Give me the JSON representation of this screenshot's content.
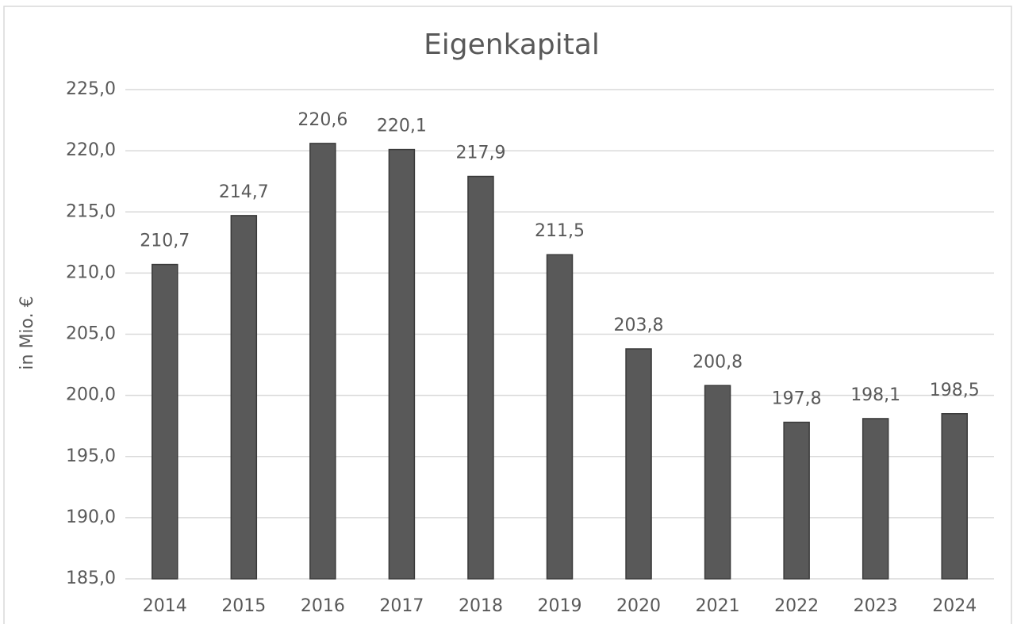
{
  "chart_data": {
    "type": "bar",
    "title": "Eigenkapital",
    "y_label": "in Mio. €",
    "categories": [
      "2014",
      "2015",
      "2016",
      "2017",
      "2018",
      "2019",
      "2020",
      "2021",
      "2022",
      "2023",
      "2024"
    ],
    "values": [
      210.7,
      214.7,
      220.6,
      220.1,
      217.9,
      211.5,
      203.8,
      200.8,
      197.8,
      198.1,
      198.5
    ],
    "value_labels": [
      "210,7",
      "214,7",
      "220,6",
      "220,1",
      "217,9",
      "211,5",
      "203,8",
      "200,8",
      "197,8",
      "198,1",
      "198,5"
    ],
    "color": "#595959",
    "ylim": [
      185,
      225
    ],
    "yticks": [
      {
        "value": 185,
        "label": "185,0"
      },
      {
        "value": 190,
        "label": "190,0"
      },
      {
        "value": 195,
        "label": "195,0"
      },
      {
        "value": 200,
        "label": "200,0"
      },
      {
        "value": 205,
        "label": "205,0"
      },
      {
        "value": 210,
        "label": "210,0"
      },
      {
        "value": 215,
        "label": "215,0"
      },
      {
        "value": 220,
        "label": "220,0"
      },
      {
        "value": 225,
        "label": "225,0"
      }
    ],
    "grid": true
  }
}
